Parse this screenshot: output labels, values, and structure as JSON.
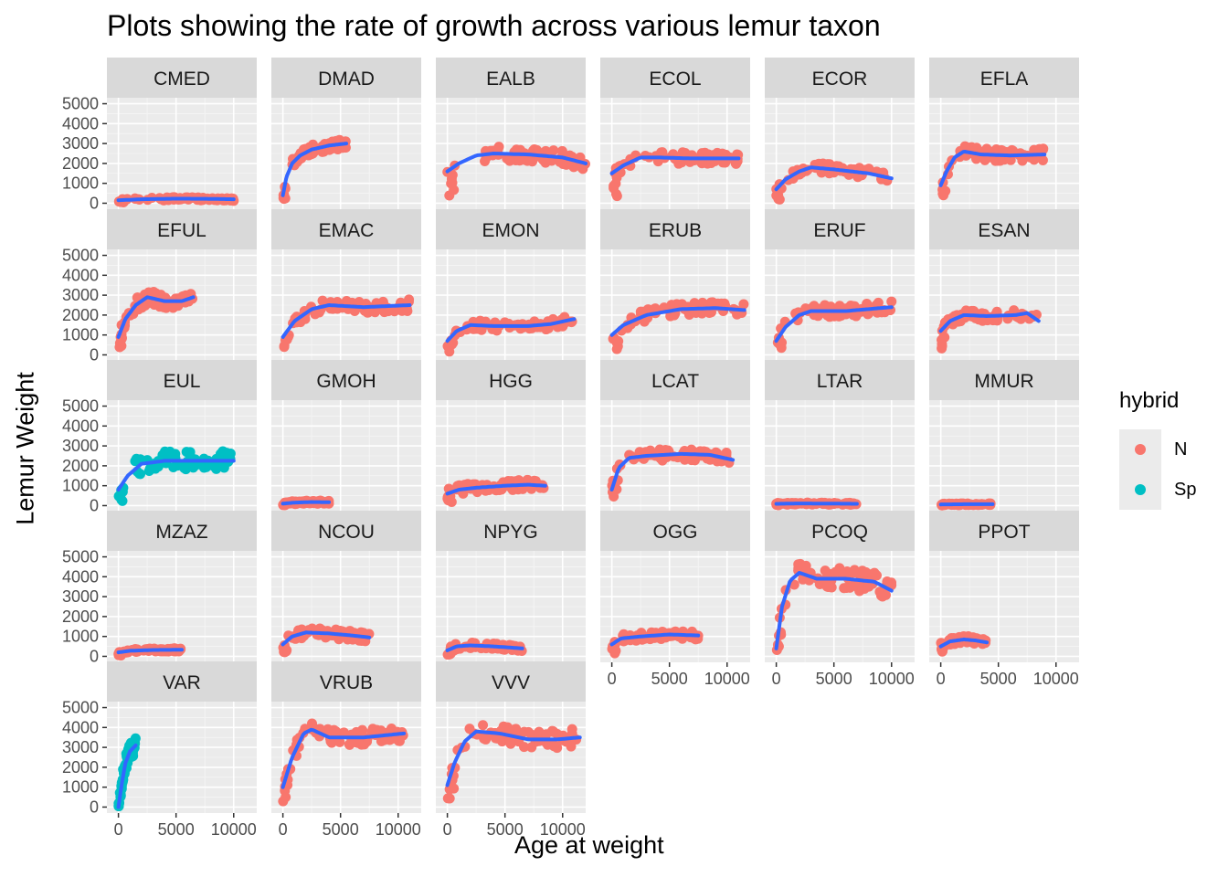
{
  "chart_data": {
    "type": "scatter",
    "title": "Plots showing the rate of growth across various lemur taxon",
    "xlabel": "Age at weight",
    "ylabel": "Lemur Weight",
    "xlim": [
      -1000,
      12000
    ],
    "ylim": [
      -300,
      5300
    ],
    "x_ticks": [
      0,
      5000,
      10000
    ],
    "x_tick_labels": [
      "0",
      "5000",
      "10000"
    ],
    "y_ticks": [
      0,
      1000,
      2000,
      3000,
      4000,
      5000
    ],
    "y_tick_labels": [
      "0",
      "1000",
      "2000",
      "3000",
      "4000",
      "5000"
    ],
    "grid": true,
    "smooth_color": "#3366FF",
    "legend": {
      "title": "hybrid",
      "position": "right",
      "entries": [
        {
          "label": "N",
          "color": "#F8766D"
        },
        {
          "label": "Sp",
          "color": "#00BFC4"
        }
      ]
    },
    "facets": [
      {
        "taxon": "CMED",
        "hybrid": "N",
        "x_max": 10000,
        "curve": [
          [
            0,
            150
          ],
          [
            2000,
            200
          ],
          [
            5000,
            230
          ],
          [
            8000,
            220
          ],
          [
            10000,
            200
          ]
        ],
        "spread": 80
      },
      {
        "taxon": "DMAD",
        "hybrid": "N",
        "x_max": 5500,
        "curve": [
          [
            0,
            400
          ],
          [
            300,
            1300
          ],
          [
            800,
            2000
          ],
          [
            1500,
            2400
          ],
          [
            2500,
            2700
          ],
          [
            4000,
            2900
          ],
          [
            5500,
            3000
          ]
        ],
        "spread": 250
      },
      {
        "taxon": "EALB",
        "hybrid": "N",
        "x_max": 12000,
        "curve": [
          [
            0,
            1600
          ],
          [
            1000,
            2000
          ],
          [
            2500,
            2400
          ],
          [
            4000,
            2500
          ],
          [
            7000,
            2450
          ],
          [
            10000,
            2300
          ],
          [
            12000,
            2000
          ]
        ],
        "spread": 350
      },
      {
        "taxon": "ECOL",
        "hybrid": "N",
        "x_max": 11000,
        "curve": [
          [
            0,
            1500
          ],
          [
            1000,
            1900
          ],
          [
            2500,
            2300
          ],
          [
            4000,
            2300
          ],
          [
            7000,
            2250
          ],
          [
            11000,
            2250
          ]
        ],
        "spread": 300
      },
      {
        "taxon": "ECOR",
        "hybrid": "N",
        "x_max": 10000,
        "curve": [
          [
            0,
            700
          ],
          [
            800,
            1200
          ],
          [
            2000,
            1600
          ],
          [
            3000,
            1800
          ],
          [
            5000,
            1700
          ],
          [
            8000,
            1500
          ],
          [
            10000,
            1250
          ]
        ],
        "spread": 250
      },
      {
        "taxon": "EFLA",
        "hybrid": "N",
        "x_max": 9000,
        "curve": [
          [
            0,
            900
          ],
          [
            500,
            1600
          ],
          [
            1200,
            2300
          ],
          [
            2000,
            2600
          ],
          [
            3500,
            2450
          ],
          [
            6000,
            2400
          ],
          [
            9000,
            2450
          ]
        ],
        "spread": 300
      },
      {
        "taxon": "EFUL",
        "hybrid": "N",
        "x_max": 6500,
        "curve": [
          [
            0,
            900
          ],
          [
            600,
            1800
          ],
          [
            1500,
            2500
          ],
          [
            2500,
            2900
          ],
          [
            4000,
            2700
          ],
          [
            5500,
            2700
          ],
          [
            6500,
            2900
          ]
        ],
        "spread": 350
      },
      {
        "taxon": "EMAC",
        "hybrid": "N",
        "x_max": 11000,
        "curve": [
          [
            0,
            900
          ],
          [
            1000,
            1700
          ],
          [
            2500,
            2300
          ],
          [
            4000,
            2500
          ],
          [
            7000,
            2400
          ],
          [
            11000,
            2500
          ]
        ],
        "spread": 300
      },
      {
        "taxon": "EMON",
        "hybrid": "N",
        "x_max": 11000,
        "curve": [
          [
            0,
            700
          ],
          [
            800,
            1200
          ],
          [
            2000,
            1500
          ],
          [
            4000,
            1450
          ],
          [
            7000,
            1450
          ],
          [
            9000,
            1550
          ],
          [
            11000,
            1800
          ]
        ],
        "spread": 250
      },
      {
        "taxon": "ERUB",
        "hybrid": "N",
        "x_max": 11500,
        "curve": [
          [
            0,
            1000
          ],
          [
            1000,
            1500
          ],
          [
            3000,
            2000
          ],
          [
            6000,
            2300
          ],
          [
            9000,
            2350
          ],
          [
            11500,
            2250
          ]
        ],
        "spread": 300
      },
      {
        "taxon": "ERUF",
        "hybrid": "N",
        "x_max": 10000,
        "curve": [
          [
            0,
            700
          ],
          [
            800,
            1400
          ],
          [
            2000,
            2000
          ],
          [
            3000,
            2200
          ],
          [
            6000,
            2200
          ],
          [
            10000,
            2400
          ]
        ],
        "spread": 300
      },
      {
        "taxon": "ESAN",
        "hybrid": "N",
        "x_max": 8500,
        "curve": [
          [
            0,
            1200
          ],
          [
            800,
            1700
          ],
          [
            2000,
            2000
          ],
          [
            4000,
            1950
          ],
          [
            6500,
            2000
          ],
          [
            7500,
            2100
          ],
          [
            8500,
            1700
          ]
        ],
        "spread": 250
      },
      {
        "taxon": "EUL",
        "hybrid": "Sp",
        "x_max": 10000,
        "curve": [
          [
            0,
            800
          ],
          [
            800,
            1500
          ],
          [
            2000,
            2100
          ],
          [
            4000,
            2250
          ],
          [
            7000,
            2250
          ],
          [
            10000,
            2250
          ]
        ],
        "spread": 500
      },
      {
        "taxon": "GMOH",
        "hybrid": "N",
        "x_max": 4000,
        "curve": [
          [
            0,
            100
          ],
          [
            1000,
            150
          ],
          [
            2500,
            180
          ],
          [
            4000,
            170
          ]
        ],
        "spread": 80
      },
      {
        "taxon": "HGG",
        "hybrid": "N",
        "x_max": 8500,
        "curve": [
          [
            0,
            600
          ],
          [
            1000,
            800
          ],
          [
            2500,
            900
          ],
          [
            5000,
            1000
          ],
          [
            7000,
            1050
          ],
          [
            8500,
            1000
          ]
        ],
        "spread": 250
      },
      {
        "taxon": "LCAT",
        "hybrid": "N",
        "x_max": 10500,
        "curve": [
          [
            0,
            800
          ],
          [
            600,
            1900
          ],
          [
            1500,
            2400
          ],
          [
            3000,
            2500
          ],
          [
            6000,
            2600
          ],
          [
            8500,
            2550
          ],
          [
            10500,
            2300
          ]
        ],
        "spread": 300
      },
      {
        "taxon": "LTAR",
        "hybrid": "N",
        "x_max": 7000,
        "curve": [
          [
            0,
            90
          ],
          [
            2000,
            110
          ],
          [
            5000,
            100
          ],
          [
            7000,
            90
          ]
        ],
        "spread": 50
      },
      {
        "taxon": "MMUR",
        "hybrid": "N",
        "x_max": 4500,
        "curve": [
          [
            0,
            60
          ],
          [
            2000,
            70
          ],
          [
            4500,
            70
          ]
        ],
        "spread": 40
      },
      {
        "taxon": "MZAZ",
        "hybrid": "N",
        "x_max": 5500,
        "curve": [
          [
            0,
            200
          ],
          [
            1000,
            280
          ],
          [
            3000,
            320
          ],
          [
            5500,
            330
          ]
        ],
        "spread": 80
      },
      {
        "taxon": "NCOU",
        "hybrid": "N",
        "x_max": 7500,
        "curve": [
          [
            0,
            600
          ],
          [
            800,
            1000
          ],
          [
            2000,
            1200
          ],
          [
            4000,
            1150
          ],
          [
            6000,
            1050
          ],
          [
            7500,
            950
          ]
        ],
        "spread": 250
      },
      {
        "taxon": "NPYG",
        "hybrid": "N",
        "x_max": 6500,
        "curve": [
          [
            0,
            300
          ],
          [
            800,
            500
          ],
          [
            2000,
            550
          ],
          [
            4000,
            500
          ],
          [
            6500,
            400
          ]
        ],
        "spread": 150
      },
      {
        "taxon": "OGG",
        "hybrid": "N",
        "x_max": 7500,
        "curve": [
          [
            0,
            600
          ],
          [
            800,
            900
          ],
          [
            2500,
            1000
          ],
          [
            5000,
            1100
          ],
          [
            7500,
            1050
          ]
        ],
        "spread": 200
      },
      {
        "taxon": "PCOQ",
        "hybrid": "N",
        "x_max": 10000,
        "curve": [
          [
            0,
            400
          ],
          [
            500,
            2500
          ],
          [
            1200,
            3800
          ],
          [
            2000,
            4200
          ],
          [
            3500,
            3900
          ],
          [
            6000,
            3900
          ],
          [
            8500,
            3750
          ],
          [
            10000,
            3300
          ]
        ],
        "spread": 550
      },
      {
        "taxon": "PPOT",
        "hybrid": "N",
        "x_max": 4000,
        "curve": [
          [
            0,
            500
          ],
          [
            800,
            750
          ],
          [
            2000,
            850
          ],
          [
            3000,
            800
          ],
          [
            4000,
            700
          ]
        ],
        "spread": 180
      },
      {
        "taxon": "VAR",
        "hybrid": "Sp",
        "x_max": 1500,
        "curve": [
          [
            0,
            0
          ],
          [
            300,
            1200
          ],
          [
            600,
            2200
          ],
          [
            1000,
            2800
          ],
          [
            1500,
            3100
          ]
        ],
        "spread": 400
      },
      {
        "taxon": "VRUB",
        "hybrid": "N",
        "x_max": 10500,
        "curve": [
          [
            0,
            1000
          ],
          [
            800,
            2500
          ],
          [
            1800,
            3700
          ],
          [
            2500,
            3900
          ],
          [
            4000,
            3500
          ],
          [
            7000,
            3500
          ],
          [
            10500,
            3700
          ]
        ],
        "spread": 400
      },
      {
        "taxon": "VVV",
        "hybrid": "N",
        "x_max": 11500,
        "curve": [
          [
            0,
            1100
          ],
          [
            600,
            2200
          ],
          [
            1500,
            3300
          ],
          [
            2500,
            3800
          ],
          [
            4500,
            3700
          ],
          [
            7000,
            3400
          ],
          [
            9500,
            3400
          ],
          [
            11500,
            3500
          ]
        ],
        "spread": 450
      }
    ]
  }
}
